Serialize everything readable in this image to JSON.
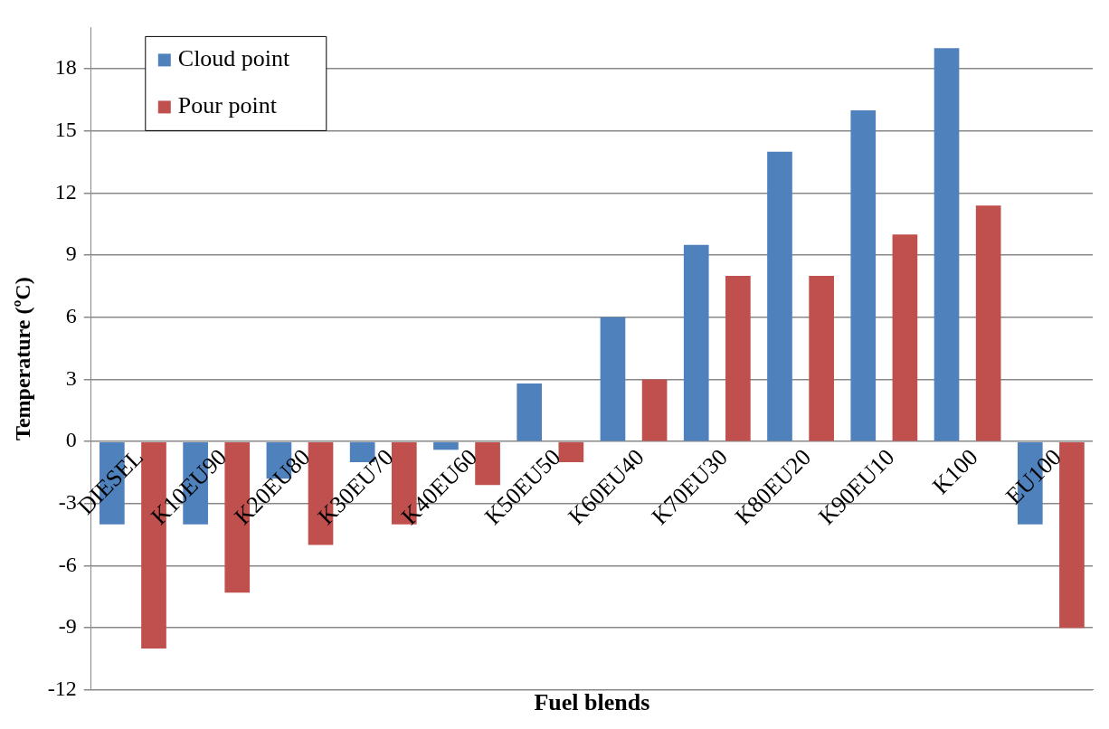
{
  "chart_data": {
    "type": "bar",
    "xlabel": "Fuel blends",
    "ylabel": "Temperature (ºC)",
    "categories": [
      "DIESEL",
      "K10EU90",
      "K20EU80",
      "K30EU70",
      "K40EU60",
      "K50EU50",
      "K60EU40",
      "K70EU30",
      "K80EU20",
      "K90EU10",
      "K100",
      "EU100"
    ],
    "series": [
      {
        "name": "Cloud point",
        "color": "#4f81bd",
        "values": [
          -4,
          -4,
          -1.8,
          -1,
          -0.4,
          2.8,
          6,
          9.5,
          14,
          16,
          19,
          -4
        ]
      },
      {
        "name": "Pour point",
        "color": "#c0504d",
        "values": [
          -10,
          -7.3,
          -5,
          -4,
          -2.1,
          -1,
          3,
          8,
          8,
          10,
          11.4,
          -9
        ]
      }
    ],
    "ylim": [
      -12,
      20
    ],
    "yticks": [
      -12,
      -9,
      -6,
      -3,
      0,
      3,
      6,
      9,
      12,
      15,
      18
    ],
    "grid": "y",
    "legend": "top left"
  }
}
